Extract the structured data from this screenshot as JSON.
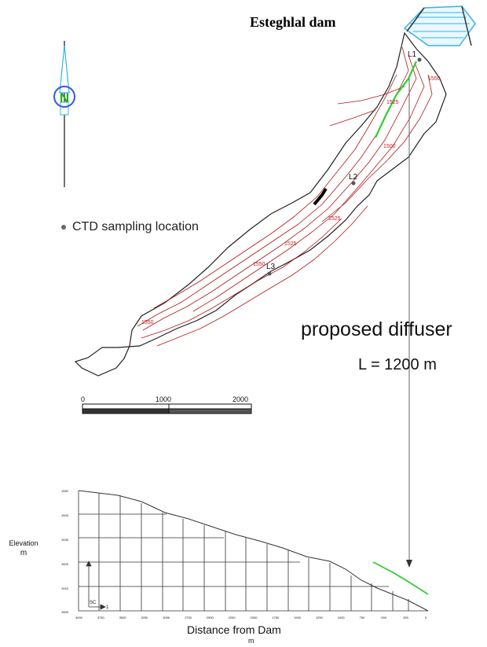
{
  "map": {
    "title": "Esteghlal dam",
    "north_label": "N",
    "legend_text": "CTD sampling location",
    "stations": [
      "L1",
      "L2",
      "L3"
    ],
    "scale_ticks": [
      "0",
      "1000",
      "2000"
    ],
    "contour_labels": [
      "1550",
      "1550",
      "1525",
      "1525",
      "1500",
      "1525",
      "1550"
    ]
  },
  "annotation": {
    "diffuser_label": "proposed diffuser",
    "diffuser_length": "L = 1200 m"
  },
  "profile": {
    "ylabel": "Elevation",
    "yunit": "m",
    "xlabel": "Distance from Dam",
    "xunit": "m",
    "y_ticks": [
      "1550",
      "1545",
      "1535",
      "1525",
      "1515",
      "1505"
    ],
    "x_ticks": [
      "4000",
      "3750",
      "3500",
      "3250",
      "3000",
      "2750",
      "2500",
      "2250",
      "2000",
      "1750",
      "1500",
      "1250",
      "1000",
      "750",
      "500",
      "250",
      "0"
    ],
    "axis_marker_label": "SC",
    "axis_marker_value": "1"
  },
  "colors": {
    "contour": "#b01818",
    "diffuser": "#33cc33",
    "dam": "#33b5e5",
    "north_ring": "#3355ee",
    "north_letter": "#22aa22"
  }
}
